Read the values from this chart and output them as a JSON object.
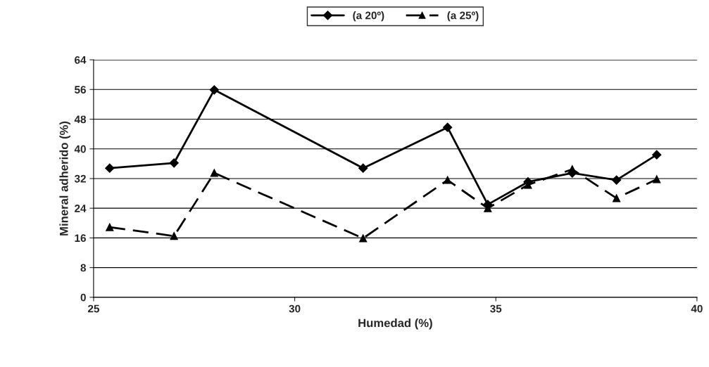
{
  "chart_data": {
    "type": "line",
    "xlabel": "Humedad (%)",
    "ylabel": "Mineral adherido (%)",
    "xlim": [
      25,
      40
    ],
    "xticks": [
      25,
      30,
      35,
      40
    ],
    "ylim": [
      0,
      64
    ],
    "yticks": [
      0,
      8,
      16,
      24,
      32,
      40,
      48,
      56,
      64
    ],
    "grid": "y",
    "legend": "top",
    "series": [
      {
        "name": "(a 20º)",
        "color": "#000000",
        "marker": "diamond",
        "line_style": "solid",
        "x": [
          25.4,
          27.0,
          28.0,
          31.7,
          33.8,
          34.8,
          35.8,
          36.9,
          38.0,
          39.0
        ],
        "values": [
          34.8,
          36.2,
          55.9,
          34.8,
          45.8,
          25.0,
          31.1,
          33.5,
          31.6,
          38.4
        ]
      },
      {
        "name": "(a 25º)",
        "color": "#000000",
        "marker": "triangle",
        "line_style": "dashed",
        "x": [
          25.4,
          27.0,
          28.0,
          31.7,
          33.8,
          34.8,
          35.8,
          36.9,
          38.0,
          39.0
        ],
        "values": [
          18.9,
          16.5,
          33.5,
          15.9,
          31.6,
          24.0,
          30.3,
          34.5,
          26.7,
          31.8
        ]
      }
    ]
  }
}
